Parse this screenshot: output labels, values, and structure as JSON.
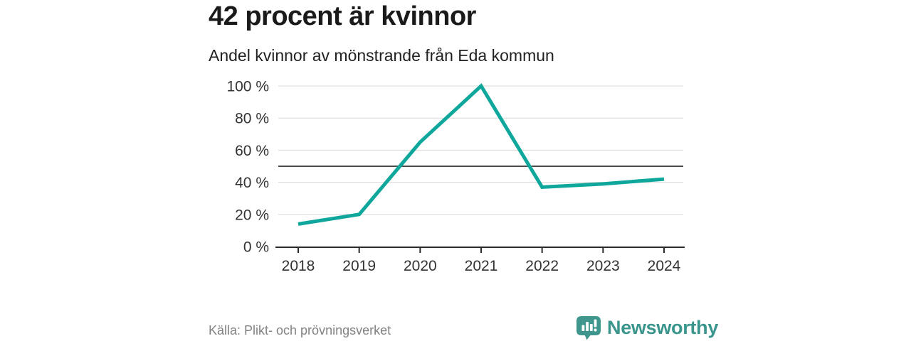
{
  "header": {
    "title": "42 procent är kvinnor",
    "subtitle": "Andel kvinnor av mönstrande från Eda kommun"
  },
  "chart_data": {
    "type": "line",
    "x": [
      2018,
      2019,
      2020,
      2021,
      2022,
      2023,
      2024
    ],
    "series": [
      {
        "name": "Andel kvinnor av mönstrande",
        "values": [
          14,
          20,
          65,
          100,
          37,
          39,
          42
        ]
      }
    ],
    "unit": "%",
    "title": "42 procent är kvinnor",
    "xlabel": "",
    "ylabel": "",
    "ylim": [
      0,
      100
    ],
    "y_ticks": [
      0,
      20,
      40,
      60,
      80,
      100
    ],
    "y_tick_suffix": " %",
    "reference_line": 50,
    "grid": true,
    "legend": "none",
    "line_color": "#0fa79c",
    "grid_color": "#d9d9d9",
    "reference_line_color": "#4d4d4d",
    "axis_color": "#2b2b2b",
    "tick_label_color": "#333333"
  },
  "footer": {
    "source": "Källa: Plikt- och prövningsverket",
    "brand": "Newsworthy",
    "brand_color": "#3a958c"
  }
}
